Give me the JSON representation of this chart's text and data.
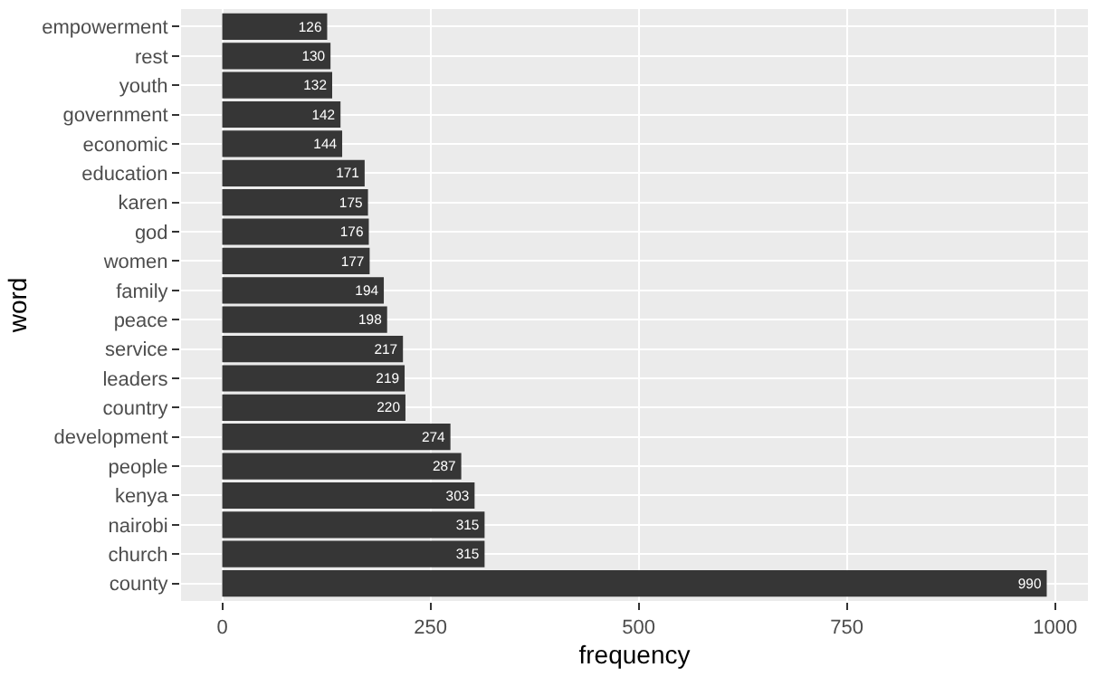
{
  "chart_data": {
    "type": "bar",
    "orientation": "horizontal",
    "xlabel": "frequency",
    "ylabel": "word",
    "categories": [
      "empowerment",
      "rest",
      "youth",
      "government",
      "economic",
      "education",
      "karen",
      "god",
      "women",
      "family",
      "peace",
      "service",
      "leaders",
      "country",
      "development",
      "people",
      "kenya",
      "nairobi",
      "church",
      "county"
    ],
    "values": [
      126,
      130,
      132,
      142,
      144,
      171,
      175,
      176,
      177,
      194,
      198,
      217,
      219,
      220,
      274,
      287,
      303,
      315,
      315,
      990
    ],
    "color": "#363636",
    "data_labels": true,
    "xlim": [
      -49.5,
      1039.5
    ],
    "xticks": [
      0,
      250,
      500,
      750,
      1000
    ],
    "grid": true,
    "legend": false
  }
}
